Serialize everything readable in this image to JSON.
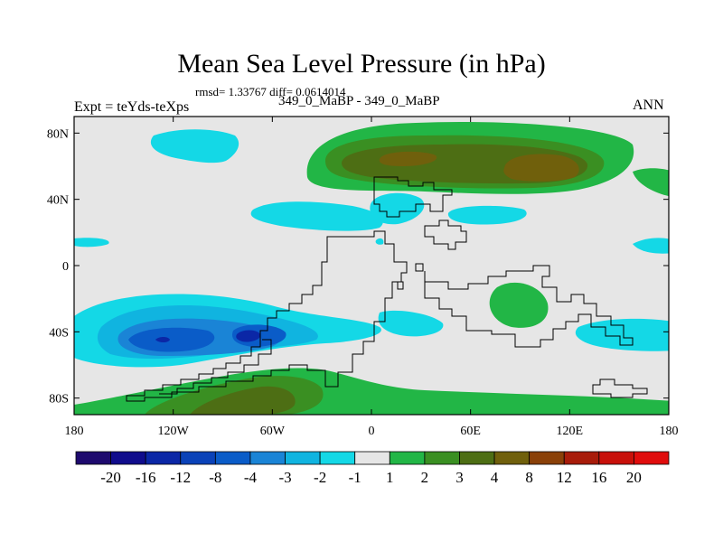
{
  "chart_data": {
    "type": "heatmap",
    "title": "Mean Sea Level Pressure (in hPa)",
    "stats_text": "rmsd= 1.33767 diff= 0.0614014",
    "experiment_label": "Expt = teYds-teXps",
    "period_label": "349_0_MaBP - 349_0_MaBP",
    "season": "ANN",
    "xlim": [
      -180,
      180
    ],
    "ylim": [
      -90,
      90
    ],
    "x_ticks": [
      {
        "value": -180,
        "label": "180"
      },
      {
        "value": -120,
        "label": "120W"
      },
      {
        "value": -60,
        "label": "60W"
      },
      {
        "value": 0,
        "label": "0"
      },
      {
        "value": 60,
        "label": "60E"
      },
      {
        "value": 120,
        "label": "120E"
      },
      {
        "value": 180,
        "label": "180"
      }
    ],
    "y_ticks": [
      {
        "value": 80,
        "label": "80N"
      },
      {
        "value": 40,
        "label": "40N"
      },
      {
        "value": 0,
        "label": "0"
      },
      {
        "value": -40,
        "label": "40S"
      },
      {
        "value": -80,
        "label": "80S"
      }
    ],
    "colorbar": {
      "labels": [
        "-20",
        "-16",
        "-12",
        "-8",
        "-4",
        "-3",
        "-2",
        "-1",
        "1",
        "2",
        "3",
        "4",
        "8",
        "12",
        "16",
        "20"
      ],
      "colors": [
        "#1e0a6e",
        "#100c8c",
        "#0b27a6",
        "#0a42b8",
        "#0a5cc8",
        "#1a84d6",
        "#10b4e0",
        "#14d8e6",
        "#e6e6e6",
        "#22b646",
        "#3a8f22",
        "#4d6e14",
        "#70600c",
        "#8a4008",
        "#a81c0a",
        "#c8100a",
        "#e00c0c"
      ]
    },
    "regions": [
      {
        "name": "arctic-positive",
        "level": "1 to 2",
        "lon_range": [
          -40,
          160
        ],
        "lat_range": [
          55,
          85
        ]
      },
      {
        "name": "asia-high",
        "level": "3 to 8",
        "lon_range": [
          20,
          130
        ],
        "lat_range": [
          55,
          75
        ]
      },
      {
        "name": "southern-low",
        "level": "-4 to -8",
        "lon_range": [
          -150,
          -50
        ],
        "lat_range": [
          -55,
          -30
        ]
      },
      {
        "name": "antarctic-positive",
        "level": "1 to 4",
        "lon_range": [
          -160,
          170
        ],
        "lat_range": [
          -90,
          -65
        ]
      },
      {
        "name": "indian-ocean-positive",
        "level": "1 to 2",
        "lon_range": [
          75,
          105
        ],
        "lat_range": [
          -35,
          -15
        ]
      }
    ]
  }
}
